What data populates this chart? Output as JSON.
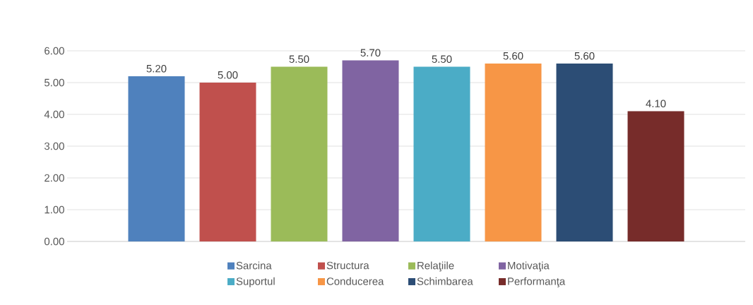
{
  "chart_data": {
    "type": "bar",
    "categories": [
      null
    ],
    "series": [
      {
        "name": "Sarcina",
        "color": "#4f81bd",
        "values": [
          5.2
        ],
        "value_labels": [
          "5.20"
        ]
      },
      {
        "name": "Structura",
        "color": "#c0504d",
        "values": [
          5.0
        ],
        "value_labels": [
          "5.00"
        ]
      },
      {
        "name": "Relaţiile",
        "color": "#9bbb59",
        "values": [
          5.5
        ],
        "value_labels": [
          "5.50"
        ]
      },
      {
        "name": "Motivaţia",
        "color": "#8064a2",
        "values": [
          5.7
        ],
        "value_labels": [
          "5.70"
        ]
      },
      {
        "name": "Suportul",
        "color": "#4bacc6",
        "values": [
          5.5
        ],
        "value_labels": [
          "5.50"
        ]
      },
      {
        "name": "Conducerea",
        "color": "#f79646",
        "values": [
          5.6
        ],
        "value_labels": [
          "5.60"
        ]
      },
      {
        "name": "Schimbarea",
        "color": "#2c4d75",
        "values": [
          5.6
        ],
        "value_labels": [
          "5.60"
        ]
      },
      {
        "name": "Performanţa",
        "color": "#772c2a",
        "values": [
          4.1
        ],
        "value_labels": [
          "4.10"
        ]
      }
    ],
    "ylim": [
      0,
      6
    ],
    "yticks": [
      {
        "value": 0,
        "label": "0.00"
      },
      {
        "value": 1,
        "label": "1.00"
      },
      {
        "value": 2,
        "label": "2.00"
      },
      {
        "value": 3,
        "label": "3.00"
      },
      {
        "value": 4,
        "label": "4.00"
      },
      {
        "value": 5,
        "label": "5.00"
      },
      {
        "value": 6,
        "label": "6.00"
      }
    ],
    "grid": "y",
    "legend": "bottom"
  }
}
